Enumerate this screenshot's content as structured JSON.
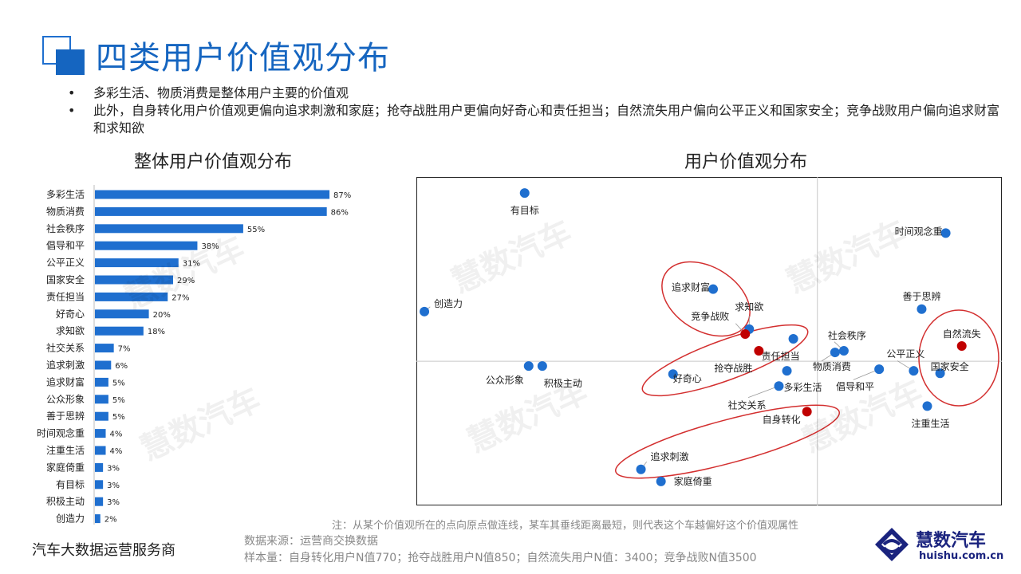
{
  "page_title": "四类用户价值观分布",
  "bullets": [
    "多彩生活、物质消费是整体用户主要的价值观",
    "此外，自身转化用户价值观更偏向追求刺激和家庭；抢夺战胜用户更偏向好奇心和责任担当；自然流失用户偏向公平正义和国家安全；竞争战败用户偏向追求财富和求知欲"
  ],
  "bullet_glyph": "•",
  "watermark_text": "慧数汽车",
  "footer": {
    "left_text": "汽车大数据运营服务商",
    "note": "注：从某个价值观所在的点向原点做连线，某车其垂线距离最短，则代表这个车越偏好这个价值观属性",
    "source": "数据来源：运营商交换数据",
    "sample": "样本量：自身转化用户N值770；抢夺战胜用户N值850；自然流失用户N值：3400；竞争战败N值3500",
    "logo_text": "慧数汽车",
    "logo_url": "huishu.com.cn"
  },
  "colors": {
    "accent": "#1565c0",
    "bar": "#1f6fcf",
    "point_value": "#1f6fcf",
    "point_user": "#c00000",
    "ellipse": "#d32f2f"
  },
  "chart_data": [
    {
      "type": "bar",
      "orientation": "horizontal",
      "title": "整体用户价值观分布",
      "categories": [
        "多彩生活",
        "物质消费",
        "社会秩序",
        "倡导和平",
        "公平正义",
        "国家安全",
        "责任担当",
        "好奇心",
        "求知欲",
        "社交关系",
        "追求刺激",
        "追求财富",
        "公众形象",
        "善于思辨",
        "时间观念重",
        "注重生活",
        "家庭倚重",
        "有目标",
        "积极主动",
        "创造力"
      ],
      "values": [
        87,
        86,
        55,
        38,
        31,
        29,
        27,
        20,
        18,
        7,
        6,
        5,
        5,
        5,
        4,
        4,
        3,
        3,
        3,
        2
      ],
      "value_labels": [
        "87%",
        "86%",
        "55%",
        "38%",
        "31%",
        "29%",
        "27%",
        "20%",
        "18%",
        "7%",
        "6%",
        "5%",
        "5%",
        "5%",
        "4%",
        "4%",
        "3%",
        "3%",
        "3%",
        "2%"
      ],
      "xlim": [
        0,
        100
      ]
    },
    {
      "type": "scatter",
      "title": "用户价值观分布",
      "xlim": [
        -5,
        2.3
      ],
      "ylim": [
        -1.8,
        2.3
      ],
      "grid": false,
      "axes_through_origin": true,
      "value_points": [
        {
          "label": "有目标",
          "x": -3.65,
          "y": 2.1
        },
        {
          "label": "时间观念重",
          "x": 1.6,
          "y": 1.6
        },
        {
          "label": "创造力",
          "x": -4.9,
          "y": 0.62
        },
        {
          "label": "追求财富",
          "x": -1.3,
          "y": 0.9
        },
        {
          "label": "求知欲",
          "x": -0.85,
          "y": 0.4
        },
        {
          "label": "责任担当",
          "x": -0.3,
          "y": 0.28
        },
        {
          "label": "善于思辨",
          "x": 1.3,
          "y": 0.65
        },
        {
          "label": "社会秩序",
          "x": 0.33,
          "y": 0.13
        },
        {
          "label": "物质消费",
          "x": 0.22,
          "y": 0.11
        },
        {
          "label": "公平正义",
          "x": 1.2,
          "y": -0.12
        },
        {
          "label": "国家安全",
          "x": 1.53,
          "y": -0.15
        },
        {
          "label": "倡导和平",
          "x": 0.77,
          "y": -0.1
        },
        {
          "label": "公众形象",
          "x": -3.6,
          "y": -0.06
        },
        {
          "label": "积极主动",
          "x": -3.43,
          "y": -0.06
        },
        {
          "label": "好奇心",
          "x": -1.8,
          "y": -0.16
        },
        {
          "label": "多彩生活",
          "x": -0.38,
          "y": -0.12
        },
        {
          "label": "社交关系",
          "x": -0.48,
          "y": -0.31
        },
        {
          "label": "注重生活",
          "x": 1.37,
          "y": -0.56
        },
        {
          "label": "追求刺激",
          "x": -2.2,
          "y": -1.35
        },
        {
          "label": "家庭倚重",
          "x": -1.95,
          "y": -1.5
        }
      ],
      "user_points": [
        {
          "label": "竞争战败",
          "x": -0.9,
          "y": 0.34
        },
        {
          "label": "抢夺战胜",
          "x": -0.73,
          "y": 0.13
        },
        {
          "label": "自然流失",
          "x": 1.8,
          "y": 0.19
        },
        {
          "label": "自身转化",
          "x": -0.13,
          "y": -0.63
        }
      ]
    }
  ]
}
